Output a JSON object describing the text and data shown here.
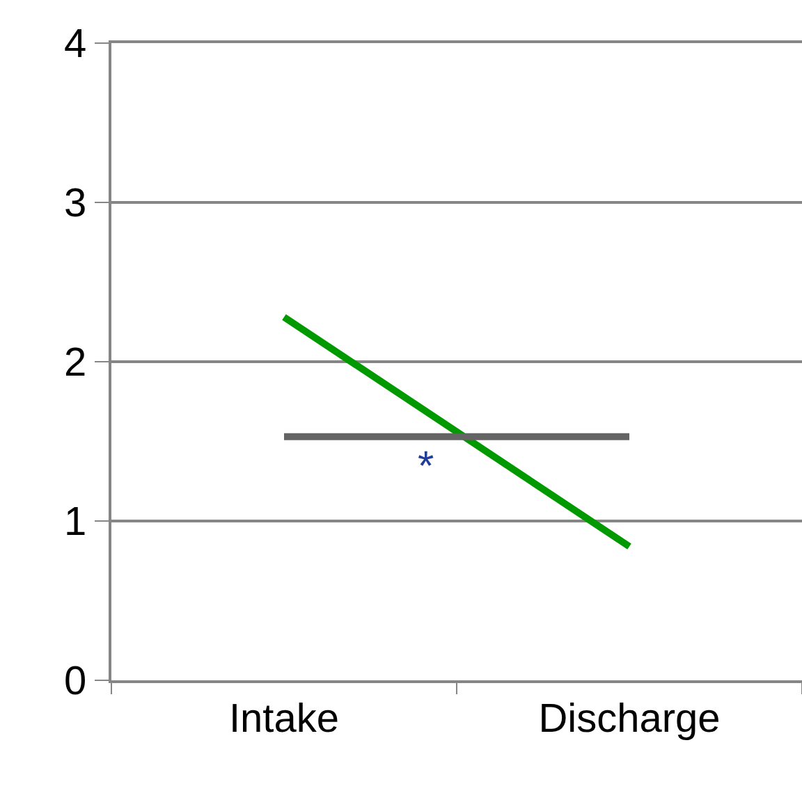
{
  "chart_data": {
    "type": "line",
    "categories": [
      "Intake",
      "Discharge"
    ],
    "series": [
      {
        "color": "#009900",
        "values": [
          2.28,
          0.84
        ]
      },
      {
        "color": "#646464",
        "values": [
          1.53,
          1.53
        ]
      }
    ],
    "ylim": [
      0,
      4
    ],
    "yticks": [
      0,
      1,
      2,
      3,
      4
    ],
    "grid": "y",
    "marker": "none",
    "line_style": "solid",
    "annotations": [
      "*"
    ]
  }
}
